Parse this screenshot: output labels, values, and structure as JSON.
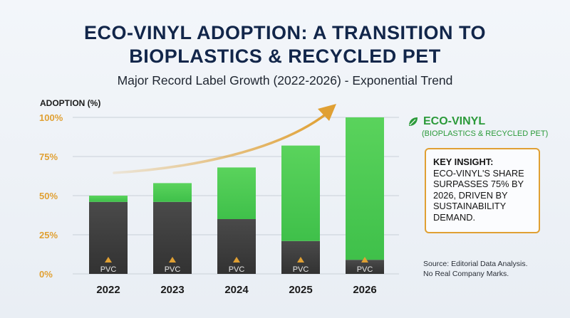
{
  "title_line1": "ECO-VINYL ADOPTION: A TRANSITION TO",
  "title_line2": "BIOPLASTICS & RECYCLED PET",
  "subtitle": "Major Record Label Growth (2022-2026) - Exponential Trend",
  "legend": {
    "name": "ECO-VINYL",
    "description": "(BIOPLASTICS & RECYCLED PET)",
    "icon": "leaf-icon"
  },
  "insight": {
    "heading": "KEY INSIGHT:",
    "text": "ECO-VINYL'S SHARE SURPASSES 75% BY 2026, DRIVEN BY SUSTAINABILITY DEMAND."
  },
  "source_line1": "Source: Editorial Data Analysis.",
  "source_line2": "No Real Company Marks.",
  "colors": {
    "eco": "#3fc04a",
    "eco_light": "#5ad35c",
    "pvc": "#3e3e3e",
    "accent": "#e0a033",
    "title": "#12264a"
  },
  "chart_data": {
    "type": "bar",
    "stacked": true,
    "ylabel": "ADOPTION (%)",
    "ylim": [
      0,
      100
    ],
    "yticks": [
      "0%",
      "25%",
      "50%",
      "75%",
      "100%"
    ],
    "categories": [
      "2022",
      "2023",
      "2024",
      "2025",
      "2026"
    ],
    "bar_label": "PVC",
    "series": [
      {
        "key": "pvc",
        "values": [
          46,
          46,
          35,
          21,
          9
        ]
      },
      {
        "name": "ECO-VINYL",
        "key": "eco",
        "values": [
          4,
          12,
          33,
          61,
          91
        ]
      }
    ],
    "totals": [
      50,
      58,
      68,
      82,
      100
    ],
    "grid": true,
    "trend_arrow": true,
    "legend_position": "right"
  }
}
